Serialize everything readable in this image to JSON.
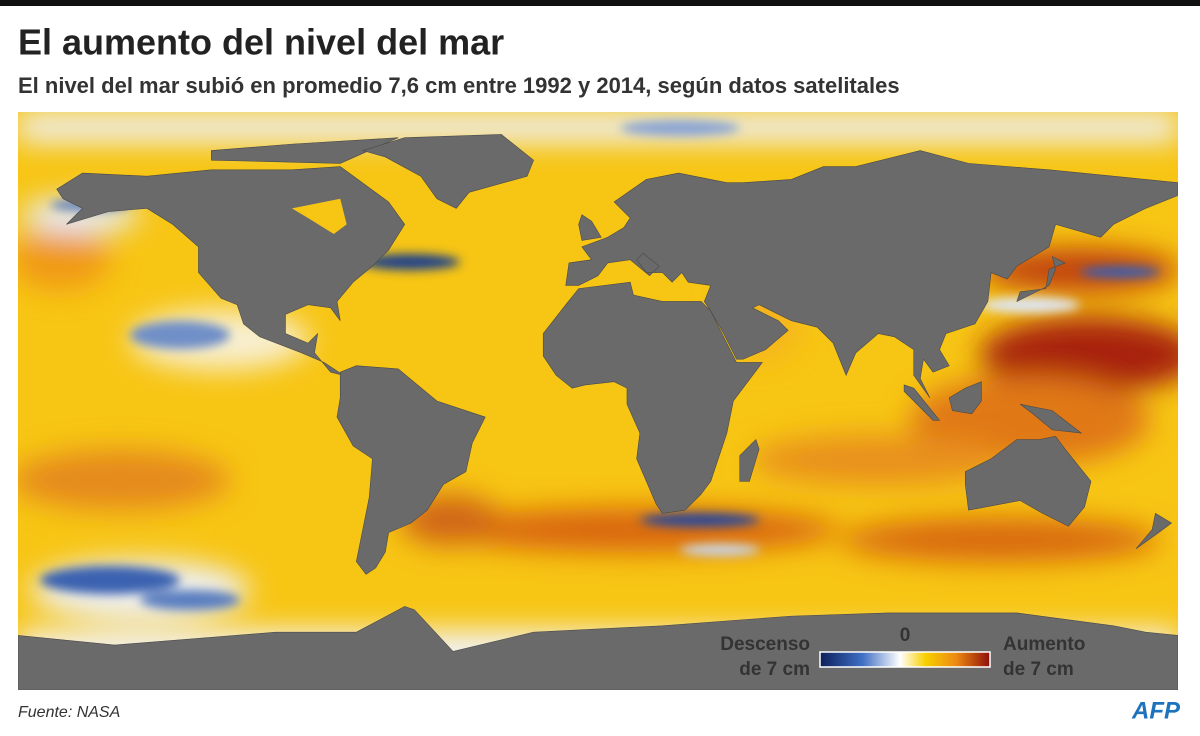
{
  "header": {
    "title": "El aumento del nivel del mar",
    "subtitle": "El nivel del mar subió en promedio 7,6 cm entre 1992 y 2014, según datos satelitales"
  },
  "legend": {
    "low": [
      "Descenso",
      "de 7 cm"
    ],
    "zero": "0",
    "high": [
      "Aumento",
      "de 7 cm"
    ]
  },
  "footer": {
    "source": "Fuente: NASA",
    "logo": "AFP"
  }
}
